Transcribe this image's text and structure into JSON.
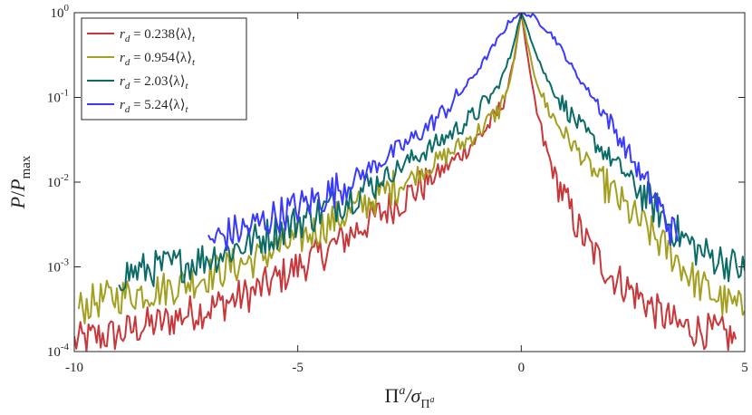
{
  "chart_data": {
    "type": "line",
    "title": "",
    "xlabel": "Π^a/σ_Π^a",
    "ylabel": "P/P_max",
    "xlim": [
      -10,
      5
    ],
    "ylim": [
      0.0001,
      1
    ],
    "yscale": "log",
    "x_ticks": [
      -10,
      -5,
      0,
      5
    ],
    "x_tick_labels": [
      "-10",
      "-5",
      "0",
      "5"
    ],
    "y_ticks": [
      0.0001,
      0.001,
      0.01,
      0.1,
      1
    ],
    "y_tick_labels": [
      {
        "base": "10",
        "exp": "-4"
      },
      {
        "base": "10",
        "exp": "-3"
      },
      {
        "base": "10",
        "exp": "-2"
      },
      {
        "base": "10",
        "exp": "-1"
      },
      {
        "base": "10",
        "exp": "0"
      }
    ],
    "ylabel_parts": {
      "num": "P",
      "den": "P",
      "den_sub": "max"
    },
    "xlabel_parts": {
      "num": "Π",
      "num_sup": "a",
      "den": "σ",
      "den_sub": "Π",
      "den_sub_sup": "a"
    },
    "legend_position": "top-left",
    "grid": false,
    "series": [
      {
        "name": "r_d = 0.238⟨λ⟩_t",
        "label_parts": {
          "coef": "0.238"
        },
        "color": "#c8373a",
        "x": [
          -10.0,
          -9.5,
          -9.0,
          -8.5,
          -8.0,
          -7.5,
          -7.0,
          -6.5,
          -6.0,
          -5.5,
          -5.0,
          -4.5,
          -4.0,
          -3.5,
          -3.0,
          -2.5,
          -2.0,
          -1.5,
          -1.0,
          -0.75,
          -0.5,
          -0.3,
          -0.15,
          0.0,
          0.15,
          0.3,
          0.5,
          0.75,
          1.0,
          1.25,
          1.5,
          1.75,
          2.0,
          2.25,
          2.5,
          2.75,
          3.0,
          3.25,
          3.5,
          4.0,
          4.5,
          4.8
        ],
        "y": [
          0.00013,
          0.00015,
          0.00016,
          0.0002,
          0.00022,
          0.00028,
          0.00032,
          0.0004,
          0.0005,
          0.0007,
          0.001,
          0.0014,
          0.0021,
          0.0032,
          0.0048,
          0.0072,
          0.011,
          0.018,
          0.032,
          0.045,
          0.07,
          0.13,
          0.3,
          1.0,
          0.28,
          0.085,
          0.03,
          0.012,
          0.006,
          0.003,
          0.0018,
          0.0012,
          0.0008,
          0.00065,
          0.0005,
          0.0004,
          0.0003,
          0.00025,
          0.0002,
          0.00018,
          0.00016,
          0.00014
        ]
      },
      {
        "name": "r_d = 0.954⟨λ⟩_t",
        "label_parts": {
          "coef": "0.954"
        },
        "color": "#a3a021",
        "x": [
          -9.9,
          -9.5,
          -9.0,
          -8.5,
          -8.0,
          -7.5,
          -7.0,
          -6.5,
          -6.0,
          -5.5,
          -5.0,
          -4.5,
          -4.0,
          -3.5,
          -3.0,
          -2.5,
          -2.0,
          -1.5,
          -1.0,
          -0.5,
          -0.25,
          0.0,
          0.25,
          0.5,
          0.75,
          1.0,
          1.25,
          1.5,
          1.75,
          2.0,
          2.25,
          2.5,
          2.75,
          3.0,
          3.25,
          3.5,
          3.75,
          4.0,
          4.5,
          5.0
        ],
        "y": [
          0.00032,
          0.0004,
          0.00045,
          0.0005,
          0.00055,
          0.00065,
          0.0008,
          0.001,
          0.0012,
          0.0016,
          0.0021,
          0.0029,
          0.004,
          0.0055,
          0.008,
          0.011,
          0.016,
          0.024,
          0.038,
          0.07,
          0.15,
          1.0,
          0.22,
          0.09,
          0.055,
          0.035,
          0.024,
          0.016,
          0.011,
          0.008,
          0.0055,
          0.004,
          0.003,
          0.0022,
          0.0016,
          0.0012,
          0.0008,
          0.0006,
          0.0004,
          0.0003
        ]
      },
      {
        "name": "r_d = 2.03⟨λ⟩_t",
        "label_parts": {
          "coef": "2.03"
        },
        "color": "#0b6c67",
        "x": [
          -9.0,
          -8.5,
          -8.0,
          -7.5,
          -7.0,
          -6.5,
          -6.0,
          -5.5,
          -5.0,
          -4.5,
          -4.0,
          -3.5,
          -3.0,
          -2.5,
          -2.0,
          -1.5,
          -1.0,
          -0.5,
          -0.25,
          0.0,
          0.25,
          0.5,
          0.75,
          1.0,
          1.25,
          1.5,
          1.75,
          2.0,
          2.25,
          2.5,
          2.75,
          3.0,
          3.25,
          3.5,
          4.0,
          4.5,
          5.0
        ],
        "y": [
          0.0008,
          0.0009,
          0.001,
          0.0011,
          0.0013,
          0.0016,
          0.002,
          0.0026,
          0.0034,
          0.0045,
          0.006,
          0.0085,
          0.012,
          0.018,
          0.026,
          0.04,
          0.065,
          0.14,
          0.3,
          1.0,
          0.45,
          0.2,
          0.11,
          0.075,
          0.05,
          0.035,
          0.026,
          0.019,
          0.014,
          0.01,
          0.007,
          0.005,
          0.0035,
          0.0025,
          0.0015,
          0.0012,
          0.0009
        ]
      },
      {
        "name": "r_d = 5.24⟨λ⟩_t",
        "label_parts": {
          "coef": "5.24"
        },
        "color": "#3a3aff",
        "x": [
          -7.0,
          -6.5,
          -6.0,
          -5.5,
          -5.0,
          -4.5,
          -4.0,
          -3.5,
          -3.0,
          -2.5,
          -2.0,
          -1.5,
          -1.0,
          -0.5,
          -0.25,
          0.0,
          0.25,
          0.5,
          0.75,
          1.0,
          1.25,
          1.5,
          1.75,
          2.0,
          2.25,
          2.5,
          2.75,
          3.0,
          3.25,
          3.5
        ],
        "y": [
          0.002,
          0.0025,
          0.003,
          0.004,
          0.005,
          0.0065,
          0.009,
          0.013,
          0.02,
          0.03,
          0.05,
          0.09,
          0.2,
          0.5,
          0.8,
          1.0,
          0.9,
          0.7,
          0.5,
          0.3,
          0.18,
          0.12,
          0.08,
          0.05,
          0.03,
          0.018,
          0.01,
          0.006,
          0.0035,
          0.002
        ]
      }
    ]
  }
}
